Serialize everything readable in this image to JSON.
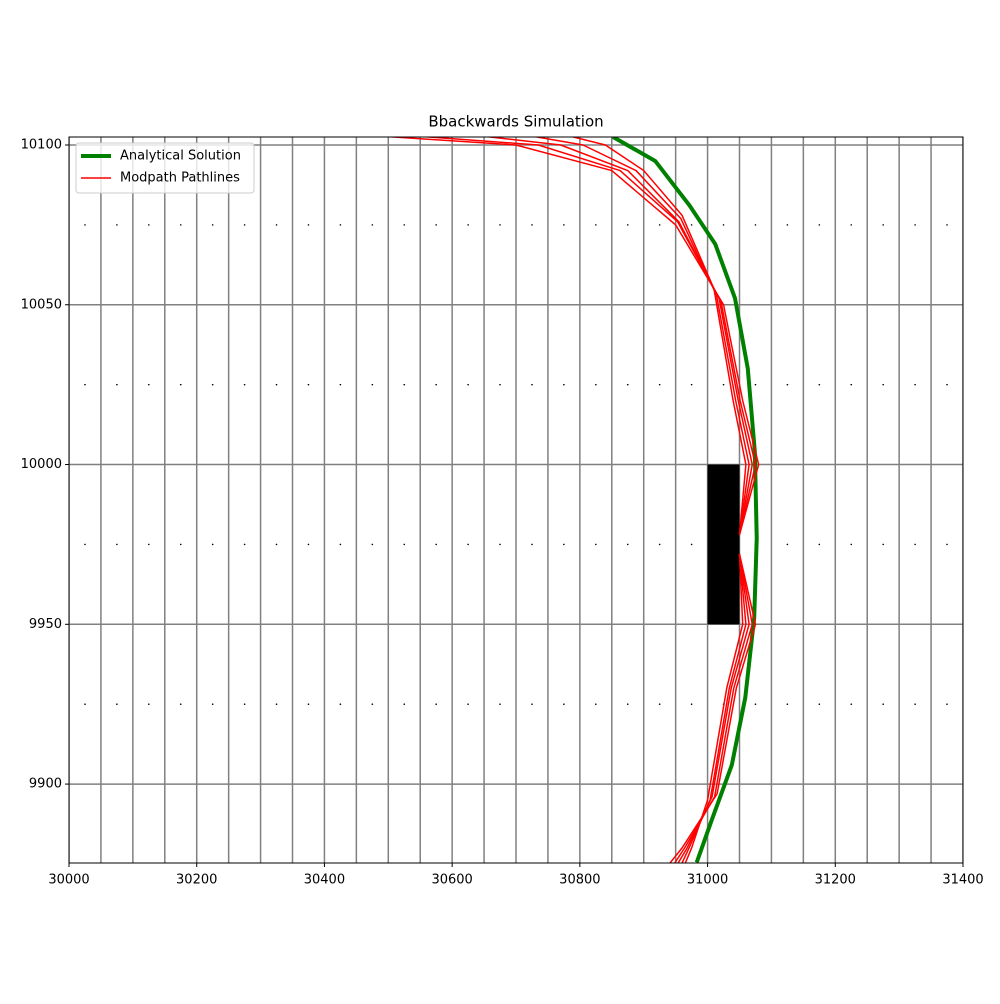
{
  "chart_data": {
    "type": "pathlines",
    "title": "Bbackwards Simulation",
    "xlim": [
      30000,
      31400
    ],
    "ylim": [
      9875.3,
      10102.5
    ],
    "xticks": [
      30000,
      30200,
      30400,
      30600,
      30800,
      31000,
      31200,
      31400
    ],
    "yticks": [
      9900,
      9950,
      10000,
      10050,
      10100
    ],
    "model_grid": {
      "dx": 50,
      "dy": 50,
      "color": "#808080"
    },
    "well_cell": {
      "x": [
        31000,
        31050
      ],
      "y": [
        9950,
        10000
      ],
      "color": "#000000"
    },
    "legend": "upper left",
    "series": [
      {
        "name": "Analytical Solution",
        "color": "#008000",
        "width": 4,
        "x": [
          30852,
          30918,
          30972,
          31012,
          31043,
          31063,
          31074,
          31077,
          31073,
          31059,
          31038,
          31007,
          30983
        ],
        "y": [
          10102.5,
          10095,
          10081,
          10069,
          10052,
          10030,
          10004,
          9977,
          9952,
          9927,
          9906,
          9889,
          9875.5
        ]
      },
      {
        "name": "Modpath Pathlines",
        "color": "#ff0000",
        "width": 1.5,
        "paths": [
          {
            "x": [
              31050,
              31080,
              31055,
              31025,
              30950,
              30850,
              30700,
              30470
            ],
            "y": [
              9978,
              10000,
              10020,
              10050,
              10075,
              10092,
              10100,
              10103
            ]
          },
          {
            "x": [
              31050,
              31075,
              31051,
              31021,
              30953,
              30863,
              30735,
              30530
            ],
            "y": [
              9978,
              10000,
              10020,
              10051,
              10076,
              10092,
              10100,
              10103
            ]
          },
          {
            "x": [
              31050,
              31070,
              31048,
              31018,
              30955,
              30875,
              30770,
              30615
            ],
            "y": [
              9978,
              10000,
              10020,
              10052,
              10076,
              10092,
              10100,
              10103.5
            ]
          },
          {
            "x": [
              31050,
              31065,
              31044,
              31014,
              30958,
              30888,
              30805,
              30690
            ],
            "y": [
              9978,
              10000,
              10020,
              10053,
              10077,
              10092,
              10100,
              10104
            ]
          },
          {
            "x": [
              31050,
              31060,
              31040,
              31010,
              30960,
              30900,
              30840,
              30760
            ],
            "y": [
              9978,
              10000,
              10020,
              10055,
              10078,
              10092,
              10100,
              10104
            ]
          },
          {
            "x": [
              31050,
              31075,
              31045,
              31015,
              30960,
              30920
            ],
            "y": [
              9972,
              9950,
              9930,
              9897,
              9880,
              9870
            ]
          },
          {
            "x": [
              31050,
              31070,
              31041,
              31011,
              30964,
              30928
            ],
            "y": [
              9972,
              9950,
              9930,
              9896,
              9880,
              9869
            ]
          },
          {
            "x": [
              31050,
              31065,
              31037,
              31007,
              30968,
              30935
            ],
            "y": [
              9972,
              9950,
              9930,
              9896,
              9880,
              9869
            ]
          },
          {
            "x": [
              31050,
              31060,
              31034,
              31004,
              30971,
              30943
            ],
            "y": [
              9972,
              9950,
              9930,
              9895,
              9880,
              9868
            ]
          },
          {
            "x": [
              31050,
              31055,
              31030,
              31000,
              30975,
              30950
            ],
            "y": [
              9972,
              9950,
              9930,
              9895,
              9880,
              9868
            ]
          }
        ]
      }
    ]
  }
}
